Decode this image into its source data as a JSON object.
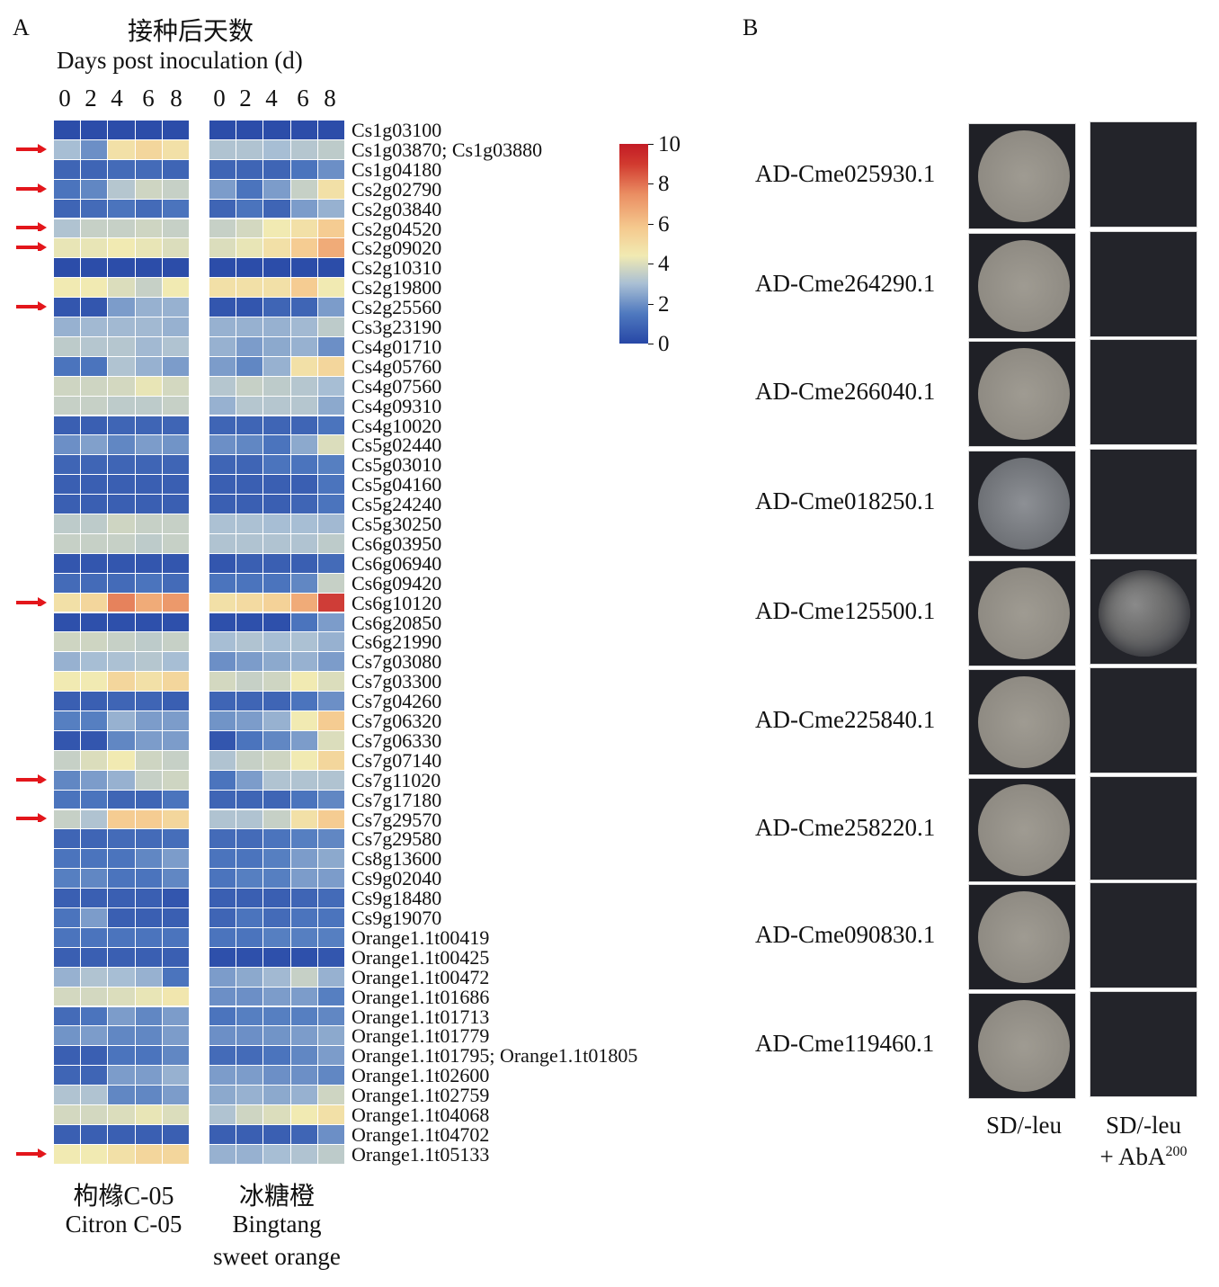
{
  "panelA": {
    "label": "A",
    "header_cn": "接种后天数",
    "header_en": "Days post inoculation (d)",
    "days": [
      "0",
      "2",
      "4",
      "6",
      "8",
      "0",
      "2",
      "4",
      "6",
      "8"
    ],
    "samples": [
      {
        "cn": "枸橼C-05",
        "en": "Citron C-05",
        "en2": ""
      },
      {
        "cn": "冰糖橙",
        "en": "Bingtang",
        "en2": "sweet orange"
      }
    ],
    "colorbar": {
      "max": 10,
      "min": 0,
      "ticks": [
        "10",
        "8",
        "6",
        "4",
        "2",
        "0"
      ],
      "colors": [
        "#2747a6",
        "#4f79bf",
        "#a9bfd4",
        "#f1eab2",
        "#f5c98e",
        "#ea8d62",
        "#c31b25"
      ]
    },
    "genes": [
      {
        "name": "Cs1g03100",
        "arrow": false,
        "citron": [
          0.2,
          0.2,
          0.2,
          0.2,
          0.2
        ],
        "orange": [
          0.2,
          0.2,
          0.2,
          0.2,
          0.2
        ]
      },
      {
        "name": "Cs1g03870; Cs1g03880",
        "arrow": true,
        "citron": [
          3.3,
          2.2,
          5.5,
          6,
          5.5
        ],
        "orange": [
          3.5,
          3.5,
          3.3,
          3.6,
          3.8
        ]
      },
      {
        "name": "Cs1g04180",
        "arrow": false,
        "citron": [
          1,
          1,
          1.2,
          1.2,
          1
        ],
        "orange": [
          1,
          1,
          1,
          1.5,
          2.2
        ]
      },
      {
        "name": "Cs2g02790",
        "arrow": true,
        "citron": [
          1.5,
          2,
          3.6,
          4.2,
          4
        ],
        "orange": [
          2.5,
          1.5,
          2.5,
          4,
          5.5
        ]
      },
      {
        "name": "Cs2g03840",
        "arrow": false,
        "citron": [
          1,
          1.2,
          1.5,
          1.2,
          1.5
        ],
        "orange": [
          1,
          1.5,
          1,
          2.5,
          3
        ]
      },
      {
        "name": "Cs2g04520",
        "arrow": true,
        "citron": [
          3.5,
          4,
          4,
          4.2,
          4
        ],
        "orange": [
          4,
          4.3,
          5,
          5.5,
          6.5
        ]
      },
      {
        "name": "Cs2g09020",
        "arrow": true,
        "citron": [
          4.8,
          4.8,
          5,
          4.8,
          4.5
        ],
        "orange": [
          4.5,
          4.8,
          5.5,
          6.5,
          7.5
        ]
      },
      {
        "name": "Cs2g10310",
        "arrow": false,
        "citron": [
          0.2,
          0.2,
          0.2,
          0.2,
          0.2
        ],
        "orange": [
          0.2,
          0.2,
          0.2,
          0.2,
          0.2
        ]
      },
      {
        "name": "Cs2g19800",
        "arrow": false,
        "citron": [
          5,
          5,
          4.5,
          4,
          5
        ],
        "orange": [
          5.5,
          5.5,
          5.5,
          6.5,
          5
        ]
      },
      {
        "name": "Cs2g25560",
        "arrow": true,
        "citron": [
          0.5,
          0.5,
          2.5,
          3,
          3
        ],
        "orange": [
          0.5,
          0.5,
          1,
          1,
          2.5
        ]
      },
      {
        "name": "Cs3g23190",
        "arrow": false,
        "citron": [
          3,
          3.2,
          3.2,
          3.2,
          3
        ],
        "orange": [
          3,
          3,
          3,
          3.2,
          3.8
        ]
      },
      {
        "name": "Cs4g01710",
        "arrow": false,
        "citron": [
          3.8,
          3.6,
          3.6,
          3.2,
          3.5
        ],
        "orange": [
          3,
          2.5,
          2.8,
          3,
          2.2
        ]
      },
      {
        "name": "Cs4g05760",
        "arrow": false,
        "citron": [
          1.5,
          1.5,
          3.5,
          3,
          2.5
        ],
        "orange": [
          2.5,
          2,
          3,
          5.5,
          6
        ]
      },
      {
        "name": "Cs4g07560",
        "arrow": false,
        "citron": [
          4.2,
          4.2,
          4.3,
          4.8,
          4.3
        ],
        "orange": [
          3.6,
          4,
          3.8,
          3.6,
          3.3
        ]
      },
      {
        "name": "Cs4g09310",
        "arrow": false,
        "citron": [
          4,
          4,
          3.8,
          3.8,
          4
        ],
        "orange": [
          3,
          3.6,
          3.6,
          3.6,
          2.8
        ]
      },
      {
        "name": "Cs4g10020",
        "arrow": false,
        "citron": [
          0.8,
          0.8,
          1,
          1,
          1
        ],
        "orange": [
          1,
          1,
          1,
          1,
          1.5
        ]
      },
      {
        "name": "Cs5g02440",
        "arrow": false,
        "citron": [
          2.2,
          2.6,
          2,
          2.5,
          2.3
        ],
        "orange": [
          2.2,
          2,
          1.5,
          2.8,
          4.5
        ]
      },
      {
        "name": "Cs5g03010",
        "arrow": false,
        "citron": [
          1,
          1,
          1,
          1,
          1
        ],
        "orange": [
          1,
          1,
          1.5,
          1.5,
          1.8
        ]
      },
      {
        "name": "Cs5g04160",
        "arrow": false,
        "citron": [
          0.8,
          0.8,
          0.8,
          0.8,
          0.8
        ],
        "orange": [
          0.8,
          0.8,
          0.8,
          0.8,
          1.5
        ]
      },
      {
        "name": "Cs5g24240",
        "arrow": false,
        "citron": [
          0.8,
          0.8,
          0.8,
          0.8,
          0.8
        ],
        "orange": [
          0.8,
          0.8,
          0.8,
          1,
          1.5
        ]
      },
      {
        "name": "Cs5g30250",
        "arrow": false,
        "citron": [
          3.8,
          3.8,
          4.2,
          4,
          4
        ],
        "orange": [
          3.4,
          3.4,
          3.3,
          3.3,
          3.2
        ]
      },
      {
        "name": "Cs6g03950",
        "arrow": false,
        "citron": [
          4,
          4,
          4,
          3.8,
          4
        ],
        "orange": [
          3.5,
          3.5,
          3.5,
          3.5,
          3.8
        ]
      },
      {
        "name": "Cs6g06940",
        "arrow": false,
        "citron": [
          0.5,
          0.5,
          0.5,
          0.5,
          0.5
        ],
        "orange": [
          0.5,
          0.8,
          0.8,
          0.8,
          1.2
        ]
      },
      {
        "name": "Cs6g09420",
        "arrow": false,
        "citron": [
          1.2,
          1.2,
          1.2,
          1.5,
          1.2
        ],
        "orange": [
          1.5,
          1.5,
          1.5,
          2,
          4
        ]
      },
      {
        "name": "Cs6g10120",
        "arrow": true,
        "citron": [
          5.5,
          6,
          8.5,
          7.5,
          8
        ],
        "orange": [
          5.5,
          5.8,
          6.2,
          7.5,
          9.5
        ]
      },
      {
        "name": "Cs6g20850",
        "arrow": false,
        "citron": [
          0.3,
          0.3,
          0.3,
          0.3,
          0.3
        ],
        "orange": [
          0.3,
          0.3,
          0.3,
          1.5,
          2.5
        ]
      },
      {
        "name": "Cs6g21990",
        "arrow": false,
        "citron": [
          4.2,
          4.2,
          4,
          3.8,
          4
        ],
        "orange": [
          3.3,
          3.5,
          3.3,
          3.4,
          3
        ]
      },
      {
        "name": "Cs7g03080",
        "arrow": false,
        "citron": [
          3,
          3.3,
          3.4,
          3.6,
          3.3
        ],
        "orange": [
          2.2,
          2.5,
          2.8,
          3,
          2.5
        ]
      },
      {
        "name": "Cs7g03300",
        "arrow": false,
        "citron": [
          5,
          5,
          6,
          5.5,
          6
        ],
        "orange": [
          4.3,
          4,
          4.2,
          5,
          4.5
        ]
      },
      {
        "name": "Cs7g04260",
        "arrow": false,
        "citron": [
          0.8,
          0.8,
          1,
          1,
          0.8
        ],
        "orange": [
          1,
          1,
          1,
          1.5,
          2.2
        ]
      },
      {
        "name": "Cs7g06320",
        "arrow": false,
        "citron": [
          1.8,
          1.8,
          3,
          2.5,
          2.5
        ],
        "orange": [
          2.3,
          2.5,
          3,
          5,
          6.5
        ]
      },
      {
        "name": "Cs7g06330",
        "arrow": false,
        "citron": [
          0.5,
          0.5,
          2,
          2.5,
          2.5
        ],
        "orange": [
          0.5,
          1.5,
          2,
          2.5,
          4.5
        ]
      },
      {
        "name": "Cs7g07140",
        "arrow": false,
        "citron": [
          4,
          4.5,
          5,
          4.2,
          4
        ],
        "orange": [
          3.5,
          4,
          4.2,
          5,
          6
        ]
      },
      {
        "name": "Cs7g11020",
        "arrow": true,
        "citron": [
          2,
          2.5,
          3,
          4,
          4.2
        ],
        "orange": [
          1.5,
          2.5,
          3.5,
          3.5,
          3.5
        ]
      },
      {
        "name": "Cs7g17180",
        "arrow": false,
        "citron": [
          1.5,
          1.5,
          1,
          1,
          1.5
        ],
        "orange": [
          1,
          1,
          1,
          1.5,
          2
        ]
      },
      {
        "name": "Cs7g29570",
        "arrow": true,
        "citron": [
          4,
          3.5,
          6.5,
          6.5,
          6
        ],
        "orange": [
          3.5,
          3.5,
          4,
          5.5,
          6.5
        ]
      },
      {
        "name": "Cs7g29580",
        "arrow": false,
        "citron": [
          1,
          1,
          1.2,
          1.2,
          1.3
        ],
        "orange": [
          1.2,
          1.2,
          1.5,
          1.8,
          2
        ]
      },
      {
        "name": "Cs8g13600",
        "arrow": false,
        "citron": [
          1.5,
          1.5,
          1.5,
          2,
          2.5
        ],
        "orange": [
          1.5,
          1.5,
          1.8,
          2.5,
          2.8
        ]
      },
      {
        "name": "Cs9g02040",
        "arrow": false,
        "citron": [
          1.8,
          2,
          1.5,
          1.5,
          2
        ],
        "orange": [
          1.5,
          1.8,
          1.8,
          2.5,
          2.5
        ]
      },
      {
        "name": "Cs9g18480",
        "arrow": false,
        "citron": [
          0.8,
          0.8,
          0.8,
          0.8,
          0.5
        ],
        "orange": [
          0.8,
          0.8,
          0.8,
          1,
          1.2
        ]
      },
      {
        "name": "Cs9g19070",
        "arrow": false,
        "citron": [
          1.5,
          2.5,
          0.8,
          0.8,
          0.8
        ],
        "orange": [
          1,
          1.5,
          1.2,
          1.5,
          1.5
        ]
      },
      {
        "name": "Orange1.1t00419",
        "arrow": false,
        "citron": [
          1.5,
          1.5,
          1.5,
          1.5,
          1.5
        ],
        "orange": [
          1.5,
          1.5,
          1.8,
          1.8,
          1.8
        ]
      },
      {
        "name": "Orange1.1t00425",
        "arrow": false,
        "citron": [
          0.8,
          0.8,
          0.8,
          0.8,
          0.8
        ],
        "orange": [
          0.3,
          0.3,
          0.3,
          0.3,
          0.5
        ]
      },
      {
        "name": "Orange1.1t00472",
        "arrow": false,
        "citron": [
          3,
          3.5,
          3.3,
          3,
          1.5
        ],
        "orange": [
          2.5,
          2.8,
          3.2,
          4,
          3
        ]
      },
      {
        "name": "Orange1.1t01686",
        "arrow": false,
        "citron": [
          4.3,
          4.3,
          4.5,
          4.8,
          5.2
        ],
        "orange": [
          2.2,
          2.2,
          2.5,
          2.5,
          1.8
        ]
      },
      {
        "name": "Orange1.1t01713",
        "arrow": false,
        "citron": [
          1.2,
          1.5,
          2.5,
          2,
          2.5
        ],
        "orange": [
          1.5,
          1.8,
          1.8,
          1.8,
          2
        ]
      },
      {
        "name": "Orange1.1t01779",
        "arrow": false,
        "citron": [
          2.3,
          2.5,
          2,
          2,
          2.5
        ],
        "orange": [
          2.2,
          2.2,
          2.3,
          2.5,
          2.8
        ]
      },
      {
        "name": "Orange1.1t01795; Orange1.1t01805",
        "arrow": false,
        "citron": [
          0.8,
          0.8,
          1.5,
          1.5,
          2
        ],
        "orange": [
          1.2,
          1.2,
          1.5,
          2,
          2.5
        ]
      },
      {
        "name": "Orange1.1t02600",
        "arrow": false,
        "citron": [
          1,
          1,
          2.5,
          2.5,
          3
        ],
        "orange": [
          2.5,
          2.5,
          2.2,
          2.2,
          2
        ]
      },
      {
        "name": "Orange1.1t02759",
        "arrow": false,
        "citron": [
          3.5,
          3.5,
          2,
          2,
          2.5
        ],
        "orange": [
          2.8,
          3,
          2.8,
          3,
          4.2
        ]
      },
      {
        "name": "Orange1.1t04068",
        "arrow": false,
        "citron": [
          4.3,
          4.3,
          4.5,
          4.8,
          4.5
        ],
        "orange": [
          3.5,
          4.2,
          4.5,
          5,
          5.5
        ]
      },
      {
        "name": "Orange1.1t04702",
        "arrow": false,
        "citron": [
          0.8,
          0.8,
          0.8,
          0.8,
          0.8
        ],
        "orange": [
          0.8,
          0.8,
          0.8,
          1,
          2.2
        ]
      },
      {
        "name": "Orange1.1t05133",
        "arrow": true,
        "citron": [
          5,
          5,
          5.5,
          6,
          6
        ],
        "orange": [
          3,
          3,
          3.3,
          3.5,
          3.8
        ]
      }
    ]
  },
  "panelB": {
    "label": "B",
    "constructs": [
      "AD-Cme025930.1",
      "AD-Cme264290.1",
      "AD-Cme266040.1",
      "AD-Cme018250.1",
      "AD-Cme125500.1",
      "AD-Cme225840.1",
      "AD-Cme258220.1",
      "AD-Cme090830.1",
      "AD-Cme119460.1"
    ],
    "growth_on_aba": [
      false,
      false,
      false,
      false,
      true,
      false,
      false,
      false,
      false
    ],
    "col1_label": "SD/-leu",
    "col2_label_line1": "SD/-leu",
    "col2_label_line2": "+ AbA",
    "col2_label_sup": "200"
  }
}
